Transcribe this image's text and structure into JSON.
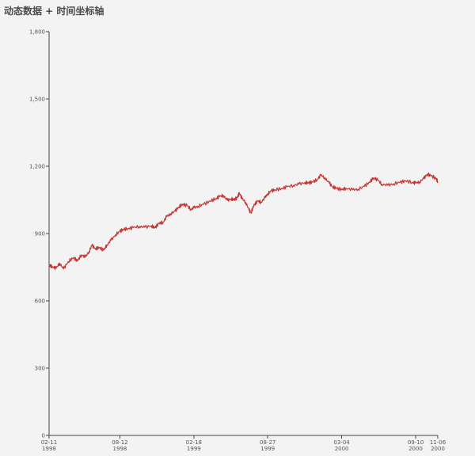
{
  "chart_data": {
    "type": "line",
    "title": "动态数据 + 时间坐标轴",
    "xlabel": "",
    "ylabel": "",
    "ylim": [
      0,
      1800
    ],
    "xlim": [
      "1998-02-11",
      "2000-11-06"
    ],
    "y_ticks": [
      "0",
      "300",
      "600",
      "900",
      "1,200",
      "1,500",
      "1,800"
    ],
    "x_ticks": [
      {
        "date": "1998-02-11",
        "line1": "02-11",
        "line2": "1998"
      },
      {
        "date": "1998-08-12",
        "line1": "08-12",
        "line2": "1998"
      },
      {
        "date": "1999-02-18",
        "line1": "02-18",
        "line2": "1999"
      },
      {
        "date": "1999-08-27",
        "line1": "08-27",
        "line2": "1999"
      },
      {
        "date": "2000-03-04",
        "line1": "03-04",
        "line2": "2000"
      },
      {
        "date": "2000-09-10",
        "line1": "09-10",
        "line2": "2000"
      },
      {
        "date": "2000-11-06",
        "line1": "11-06",
        "line2": "2000"
      }
    ],
    "grid": false,
    "colors": {
      "series": "#c23531",
      "axis": "#444444"
    },
    "series": [
      {
        "values": [
          [
            "1998-02-11",
            758
          ],
          [
            "1998-02-20",
            752
          ],
          [
            "1998-03-01",
            745
          ],
          [
            "1998-03-10",
            768
          ],
          [
            "1998-03-20",
            742
          ],
          [
            "1998-04-01",
            775
          ],
          [
            "1998-04-15",
            792
          ],
          [
            "1998-04-25",
            778
          ],
          [
            "1998-05-05",
            805
          ],
          [
            "1998-05-15",
            795
          ],
          [
            "1998-05-25",
            820
          ],
          [
            "1998-06-01",
            848
          ],
          [
            "1998-06-10",
            832
          ],
          [
            "1998-06-20",
            838
          ],
          [
            "1998-07-01",
            825
          ],
          [
            "1998-07-10",
            850
          ],
          [
            "1998-07-20",
            870
          ],
          [
            "1998-08-01",
            895
          ],
          [
            "1998-08-12",
            910
          ],
          [
            "1998-08-20",
            918
          ],
          [
            "1998-09-01",
            922
          ],
          [
            "1998-09-15",
            926
          ],
          [
            "1998-10-01",
            932
          ],
          [
            "1998-10-15",
            928
          ],
          [
            "1998-11-01",
            935
          ],
          [
            "1998-11-10",
            925
          ],
          [
            "1998-11-20",
            945
          ],
          [
            "1998-12-01",
            950
          ],
          [
            "1998-12-10",
            975
          ],
          [
            "1998-12-20",
            988
          ],
          [
            "1999-01-01",
            1000
          ],
          [
            "1999-01-10",
            1018
          ],
          [
            "1999-01-20",
            1030
          ],
          [
            "1999-02-01",
            1025
          ],
          [
            "1999-02-10",
            1008
          ],
          [
            "1999-02-18",
            1015
          ],
          [
            "1999-03-01",
            1022
          ],
          [
            "1999-03-15",
            1030
          ],
          [
            "1999-04-01",
            1045
          ],
          [
            "1999-04-15",
            1055
          ],
          [
            "1999-04-25",
            1065
          ],
          [
            "1999-05-05",
            1070
          ],
          [
            "1999-05-15",
            1048
          ],
          [
            "1999-05-25",
            1055
          ],
          [
            "1999-06-01",
            1050
          ],
          [
            "1999-06-10",
            1060
          ],
          [
            "1999-06-15",
            1082
          ],
          [
            "1999-06-22",
            1055
          ],
          [
            "1999-07-01",
            1040
          ],
          [
            "1999-07-10",
            1005
          ],
          [
            "1999-07-15",
            992
          ],
          [
            "1999-07-22",
            1025
          ],
          [
            "1999-08-01",
            1045
          ],
          [
            "1999-08-10",
            1040
          ],
          [
            "1999-08-20",
            1060
          ],
          [
            "1999-08-27",
            1078
          ],
          [
            "1999-09-05",
            1090
          ],
          [
            "1999-09-15",
            1095
          ],
          [
            "1999-10-01",
            1100
          ],
          [
            "1999-10-15",
            1108
          ],
          [
            "1999-11-01",
            1115
          ],
          [
            "1999-11-15",
            1120
          ],
          [
            "1999-12-01",
            1128
          ],
          [
            "1999-12-10",
            1125
          ],
          [
            "1999-12-20",
            1130
          ],
          [
            "2000-01-01",
            1140
          ],
          [
            "2000-01-10",
            1160
          ],
          [
            "2000-01-20",
            1150
          ],
          [
            "2000-02-01",
            1125
          ],
          [
            "2000-02-10",
            1108
          ],
          [
            "2000-02-20",
            1102
          ],
          [
            "2000-03-04",
            1095
          ],
          [
            "2000-03-15",
            1102
          ],
          [
            "2000-04-01",
            1095
          ],
          [
            "2000-04-15",
            1098
          ],
          [
            "2000-05-01",
            1110
          ],
          [
            "2000-05-15",
            1130
          ],
          [
            "2000-05-25",
            1148
          ],
          [
            "2000-06-05",
            1138
          ],
          [
            "2000-06-15",
            1120
          ],
          [
            "2000-07-01",
            1115
          ],
          [
            "2000-07-15",
            1122
          ],
          [
            "2000-08-01",
            1128
          ],
          [
            "2000-08-15",
            1135
          ],
          [
            "2000-09-01",
            1128
          ],
          [
            "2000-09-10",
            1125
          ],
          [
            "2000-09-20",
            1130
          ],
          [
            "2000-10-01",
            1145
          ],
          [
            "2000-10-10",
            1165
          ],
          [
            "2000-10-20",
            1158
          ],
          [
            "2000-11-01",
            1145
          ],
          [
            "2000-11-06",
            1132
          ]
        ]
      }
    ]
  }
}
